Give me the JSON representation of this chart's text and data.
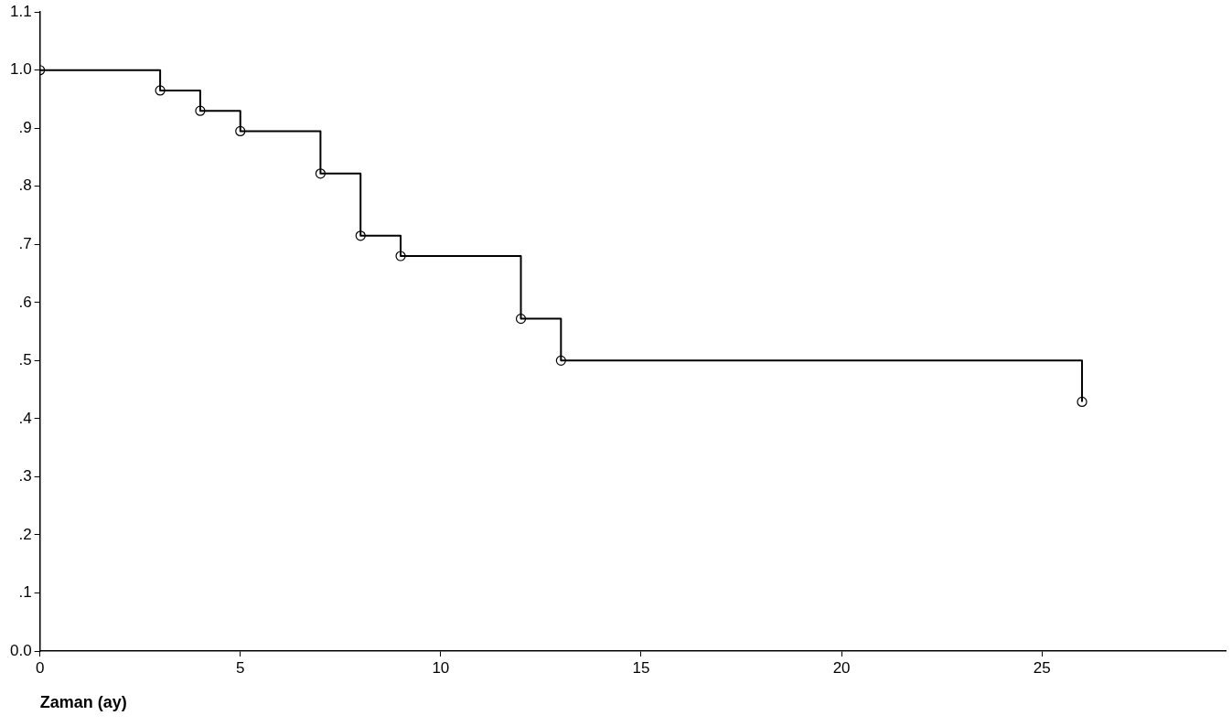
{
  "chart_data": {
    "type": "step",
    "xlabel": "Zaman (ay)",
    "x": [
      0,
      3,
      4,
      5,
      7,
      8,
      9,
      12,
      13,
      26
    ],
    "series": [
      {
        "color": "#000000",
        "values": [
          1.0,
          0.965,
          0.93,
          0.895,
          0.822,
          0.715,
          0.68,
          0.572,
          0.5,
          0.429
        ]
      }
    ],
    "xlim": [
      0,
      29.6
    ],
    "xticks": [
      0,
      5,
      10,
      15,
      20,
      25
    ],
    "ylim": [
      0,
      1.1
    ],
    "yticks": [
      {
        "value": 0,
        "label": "0.0"
      },
      {
        "value": 0.1,
        "label": ".1"
      },
      {
        "value": 0.2,
        "label": ".2"
      },
      {
        "value": 0.3,
        "label": ".3"
      },
      {
        "value": 0.4,
        "label": ".4"
      },
      {
        "value": 0.5,
        "label": ".5"
      },
      {
        "value": 0.6,
        "label": ".6"
      },
      {
        "value": 0.7,
        "label": ".7"
      },
      {
        "value": 0.8,
        "label": ".8"
      },
      {
        "value": 0.9,
        "label": ".9"
      },
      {
        "value": 1.0,
        "label": "1.0"
      },
      {
        "value": 1.1,
        "label": "1.1"
      }
    ],
    "grid": false,
    "legend": false,
    "marker": "circle",
    "line_style": "solid"
  }
}
